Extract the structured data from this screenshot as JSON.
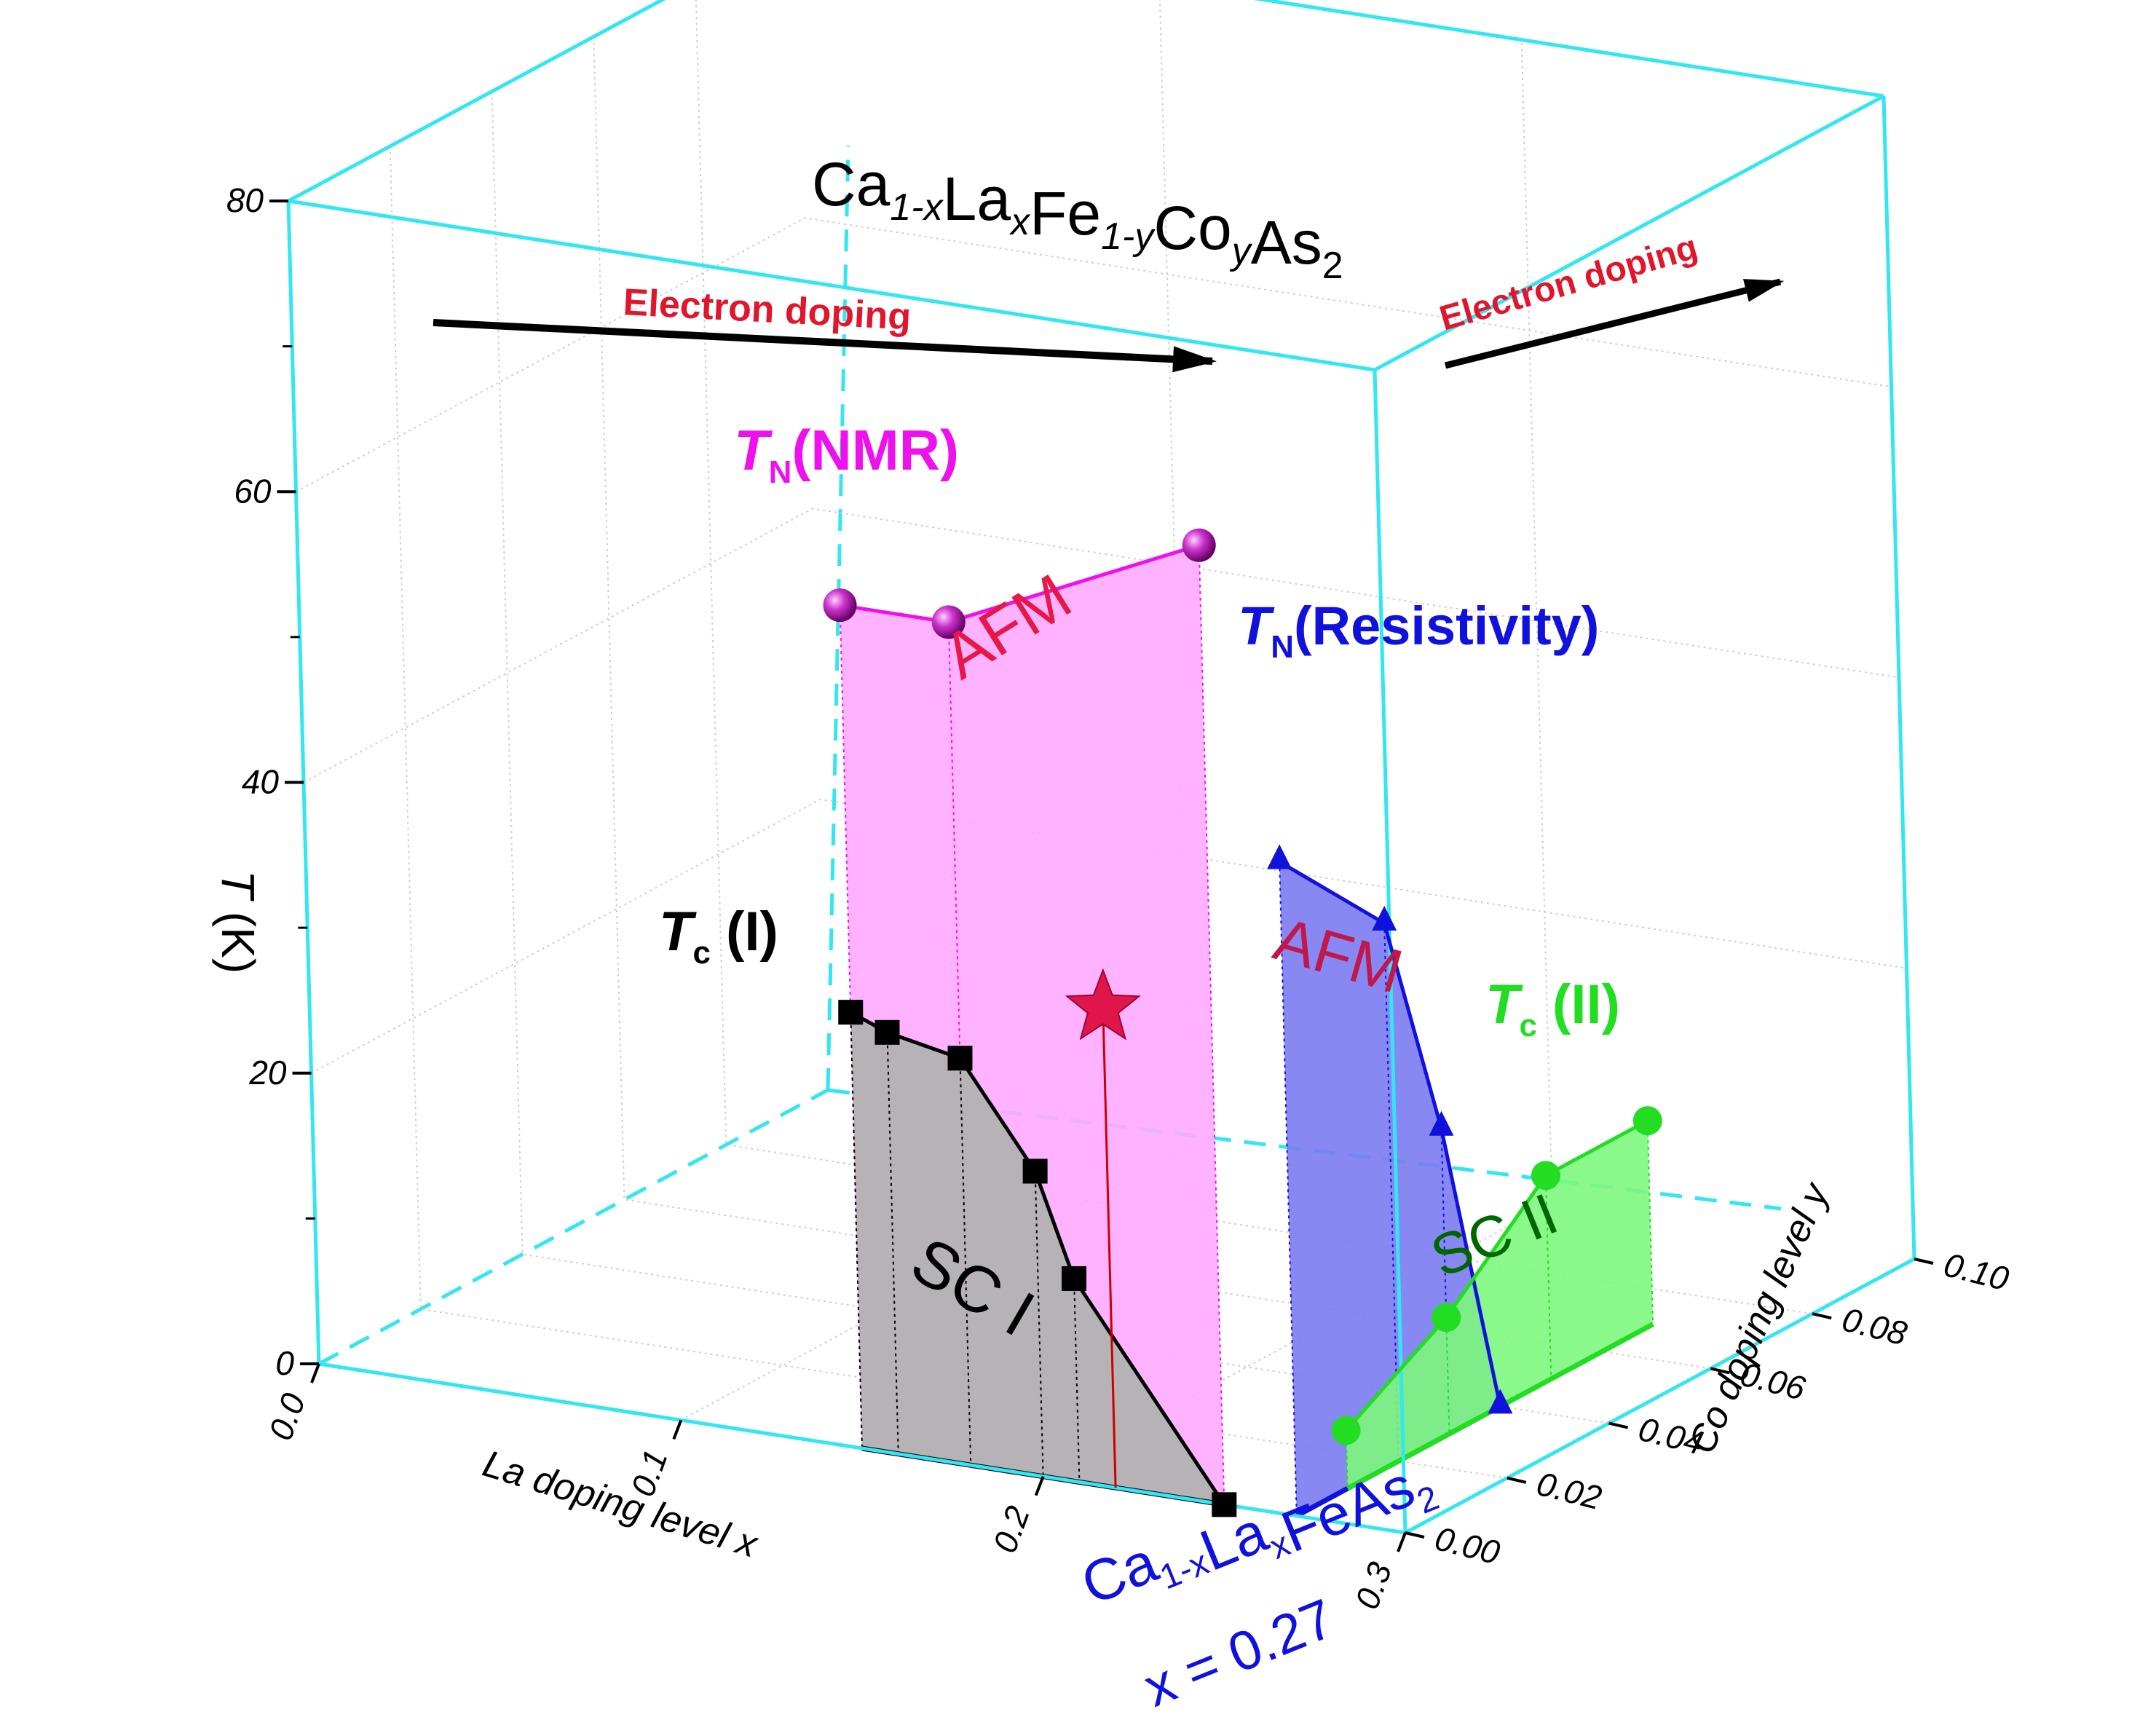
{
  "chart_data": {
    "type": "3d-phase-diagram",
    "title": {
      "parts": [
        {
          "text": "Ca",
          "style": "normal"
        },
        {
          "text": "1-x",
          "style": "sub-italic"
        },
        {
          "text": "La",
          "style": "normal"
        },
        {
          "text": "x",
          "style": "sub-italic"
        },
        {
          "text": "Fe",
          "style": "normal"
        },
        {
          "text": "1-y",
          "style": "sub-italic"
        },
        {
          "text": "Co",
          "style": "normal"
        },
        {
          "text": "y",
          "style": "sub-italic"
        },
        {
          "text": "As",
          "style": "normal"
        },
        {
          "text": "2",
          "style": "sub"
        }
      ]
    },
    "axes": {
      "x": {
        "label": "La doping level x",
        "range": [
          0,
          0.3
        ],
        "ticks": [
          "0.0",
          "0.1",
          "0.2",
          "0.3"
        ]
      },
      "y": {
        "label": "Co doping level y",
        "range": [
          0,
          0.1
        ],
        "ticks": [
          "0.00",
          "0.02",
          "0.04",
          "0.06",
          "0.08",
          "0.10"
        ]
      },
      "z": {
        "label": "T (K)",
        "range": [
          0,
          80
        ],
        "ticks": [
          "0",
          "20",
          "40",
          "60",
          "80"
        ]
      }
    },
    "series": [
      {
        "name": "T_N (NMR)",
        "label_main": "T",
        "label_sub": "N",
        "label_rest": "(NMR)",
        "color": "#ee11ee",
        "fill": "#ffaaff",
        "marker": "sphere",
        "plane": "y=0",
        "points": [
          {
            "x": 0.15,
            "T": 58
          },
          {
            "x": 0.18,
            "T": 58
          },
          {
            "x": 0.25,
            "T": 66
          }
        ]
      },
      {
        "name": "T_c (I)",
        "label_main": "T",
        "label_sub": "c",
        "label_rest": " (I)",
        "color": "#000000",
        "fill": "#b2b2b2",
        "marker": "square",
        "plane": "y=0",
        "points": [
          {
            "x": 0.15,
            "T": 30
          },
          {
            "x": 0.16,
            "T": 29
          },
          {
            "x": 0.18,
            "T": 28
          },
          {
            "x": 0.2,
            "T": 21
          },
          {
            "x": 0.21,
            "T": 14
          },
          {
            "x": 0.25,
            "T": 0
          }
        ]
      },
      {
        "name": "T_N (Resistivity)",
        "label_main": "T",
        "label_sub": "N",
        "label_rest": "(Resistivity)",
        "color": "#1111dd",
        "fill": "#7b7bf2",
        "marker": "triangle",
        "plane": "x=0.27",
        "points": [
          {
            "y": 0.0,
            "T": 45
          },
          {
            "y": 0.02,
            "T": 37
          },
          {
            "y": 0.03,
            "T": 21
          },
          {
            "y": 0.04,
            "T": 0
          }
        ]
      },
      {
        "name": "T_c (II)",
        "label_main": "T",
        "label_sub": "c",
        "label_rest": " (II)",
        "color": "#22dd22",
        "fill": "#7df77d",
        "marker": "circle",
        "plane": "x=0.27",
        "points": [
          {
            "y": 0.01,
            "T": 4
          },
          {
            "y": 0.03,
            "T": 8
          },
          {
            "y": 0.05,
            "T": 14
          },
          {
            "y": 0.07,
            "T": 14
          }
        ]
      }
    ],
    "star": {
      "x": 0.22,
      "y": 0.0,
      "T": 33,
      "color": "#e0164a"
    },
    "region_labels": [
      {
        "text": "AFM",
        "color": "#e8174a"
      },
      {
        "text": "SC I",
        "color": "#000000"
      },
      {
        "text": "AFM",
        "color": "#c0184a"
      },
      {
        "text": "SC II",
        "color": "#006600"
      }
    ],
    "annotations": {
      "electron_doping_x": "Electron doping",
      "electron_doping_y": "Electron doping",
      "compound_label": {
        "ca": "Ca",
        "sub1": "1-x",
        "la": "La",
        "sub2": "x",
        "rest": "FeAs",
        "sub3": "2"
      },
      "x_value_label": "x = 0.27"
    },
    "box_color": "#33e6f0"
  }
}
